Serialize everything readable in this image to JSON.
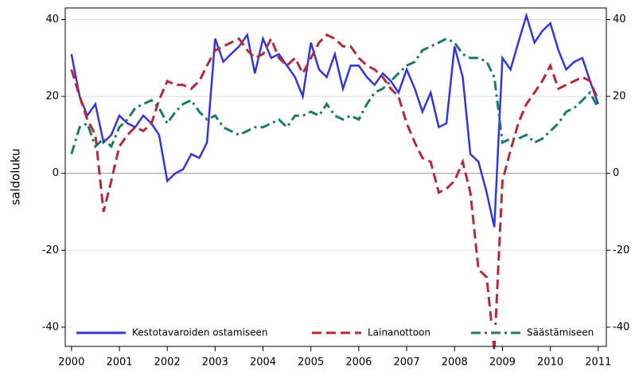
{
  "chart_data": {
    "type": "line",
    "y_label": "saldoluku",
    "x": [
      2000,
      2000.17,
      2000.33,
      2000.5,
      2000.67,
      2000.83,
      2001,
      2001.17,
      2001.33,
      2001.5,
      2001.67,
      2001.83,
      2002,
      2002.17,
      2002.33,
      2002.5,
      2002.67,
      2002.83,
      2003,
      2003.17,
      2003.33,
      2003.5,
      2003.67,
      2003.83,
      2004,
      2004.17,
      2004.33,
      2004.5,
      2004.67,
      2004.83,
      2005,
      2005.17,
      2005.33,
      2005.5,
      2005.67,
      2005.83,
      2006,
      2006.17,
      2006.33,
      2006.5,
      2006.67,
      2006.83,
      2007,
      2007.17,
      2007.33,
      2007.5,
      2007.67,
      2007.83,
      2008,
      2008.17,
      2008.33,
      2008.5,
      2008.67,
      2008.83,
      2009,
      2009.17,
      2009.33,
      2009.5,
      2009.67,
      2009.83,
      2010,
      2010.17,
      2010.33,
      2010.5,
      2010.67,
      2010.83,
      2011
    ],
    "series": [
      {
        "name": "Kestotavaroiden ostamiseen",
        "color": "#3535dd",
        "style": "solid",
        "values": [
          31,
          20,
          15,
          18,
          8,
          10,
          15,
          13,
          12,
          15,
          13,
          10,
          -2,
          0,
          1,
          5,
          4,
          8,
          35,
          29,
          31,
          33,
          36,
          26,
          35,
          30,
          31,
          28,
          25,
          20,
          34,
          27,
          25,
          31,
          22,
          28,
          28,
          25,
          23,
          26,
          24,
          21,
          27,
          22,
          16,
          21,
          12,
          13,
          33,
          25,
          5,
          3,
          -5,
          -14,
          30,
          27,
          34,
          41,
          34,
          37,
          39,
          32,
          27,
          29,
          30,
          24,
          18
        ]
      },
      {
        "name": "Lainanottoon",
        "color": "#b8283a",
        "style": "dash",
        "values": [
          27,
          20,
          14,
          10,
          -10,
          -2,
          7,
          10,
          12,
          11,
          13,
          19,
          24,
          23,
          23,
          22,
          24,
          28,
          32,
          33,
          34,
          35,
          32,
          30,
          31,
          35,
          30,
          28,
          30,
          26,
          30,
          34,
          36,
          35,
          33,
          33,
          30,
          28,
          27,
          25,
          22,
          20,
          13,
          8,
          4,
          3,
          -5,
          -4,
          -2,
          3,
          -5,
          -25,
          -27,
          -46,
          -2,
          6,
          13,
          18,
          21,
          24,
          28,
          22,
          23,
          24,
          25,
          24,
          19
        ]
      },
      {
        "name": "Säästämiseen",
        "color": "#1b7a6a",
        "style": "dashdot",
        "values": [
          5,
          12,
          13,
          7,
          9,
          7,
          12,
          14,
          17,
          18,
          19,
          17,
          13,
          16,
          18,
          19,
          16,
          14,
          15,
          12,
          11,
          10,
          11,
          12,
          12,
          13,
          14,
          12,
          15,
          15,
          16,
          15,
          18,
          15,
          14,
          15,
          14,
          18,
          21,
          22,
          24,
          26,
          28,
          29,
          32,
          33,
          34,
          35,
          34,
          31,
          30,
          30,
          29,
          25,
          8,
          9,
          9,
          10,
          8,
          9,
          11,
          13,
          16,
          17,
          19,
          21,
          17
        ]
      }
    ],
    "xlim": [
      1999.87,
      2011.17
    ],
    "xticks": [
      2000,
      2001,
      2002,
      2003,
      2004,
      2005,
      2006,
      2007,
      2008,
      2009,
      2010,
      2011
    ],
    "ylim": [
      -45,
      43
    ],
    "yticks": [
      -40,
      -20,
      0,
      20,
      40
    ],
    "y2lim": [
      -45,
      43
    ],
    "y2ticks": [
      -40,
      -20,
      0,
      20,
      40
    ],
    "grid": true,
    "legend": "bottom"
  }
}
